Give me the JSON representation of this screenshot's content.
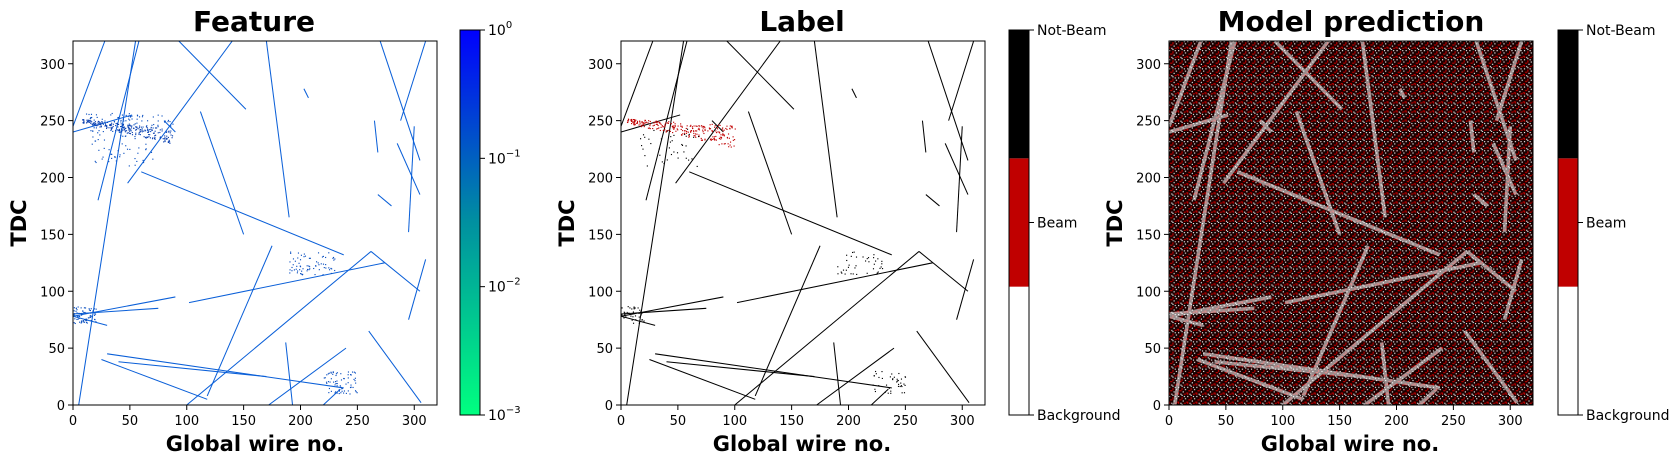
{
  "chart_data": [
    {
      "type": "heatmap",
      "title": "Feature",
      "xlabel": "Global wire no.",
      "ylabel": "TDC",
      "xlim": [
        0,
        320
      ],
      "ylim": [
        0,
        320
      ],
      "x_ticks": [
        "0",
        "50",
        "100",
        "150",
        "200",
        "250",
        "300"
      ],
      "y_ticks": [
        "0",
        "50",
        "100",
        "150",
        "200",
        "250",
        "300"
      ],
      "colorbar": {
        "scale": "log",
        "range": [
          0.001,
          1
        ],
        "tick_labels": [
          {
            "base": "10",
            "exp": "0"
          },
          {
            "base": "10",
            "exp": "−1"
          },
          {
            "base": "10",
            "exp": "−2"
          },
          {
            "base": "10",
            "exp": "−3"
          }
        ],
        "colors": [
          "#00ff80",
          "#0000ff"
        ]
      },
      "track_color": "#0a5fd8",
      "cluster_color": "#0a4fc0",
      "tracks": [
        [
          0,
          245,
          28,
          320
        ],
        [
          5,
          0,
          55,
          320
        ],
        [
          22,
          180,
          58,
          320
        ],
        [
          48,
          195,
          140,
          320
        ],
        [
          93,
          320,
          152,
          260
        ],
        [
          170,
          320,
          190,
          165
        ],
        [
          112,
          258,
          150,
          150
        ],
        [
          60,
          205,
          238,
          132
        ],
        [
          175,
          140,
          118,
          8
        ],
        [
          0,
          80,
          75,
          85
        ],
        [
          0,
          78,
          90,
          95
        ],
        [
          25,
          40,
          118,
          5
        ],
        [
          100,
          0,
          262,
          135
        ],
        [
          172,
          0,
          240,
          50
        ],
        [
          30,
          45,
          238,
          15
        ],
        [
          40,
          38,
          170,
          25
        ],
        [
          102,
          90,
          274,
          125
        ],
        [
          270,
          320,
          305,
          215
        ],
        [
          295,
          152,
          300,
          245
        ],
        [
          295,
          75,
          310,
          128
        ],
        [
          310,
          320,
          288,
          250
        ],
        [
          285,
          230,
          305,
          185
        ],
        [
          0,
          78,
          30,
          70
        ],
        [
          262,
          135,
          305,
          100
        ],
        [
          268,
          185,
          280,
          175
        ],
        [
          0,
          240,
          52,
          255
        ],
        [
          187,
          55,
          193,
          0
        ],
        [
          260,
          65,
          306,
          2
        ],
        [
          220,
          0,
          235,
          14
        ],
        [
          265,
          250,
          268,
          222
        ],
        [
          203,
          278,
          207,
          270
        ],
        [
          80,
          250,
          90,
          240
        ]
      ],
      "clusters": [
        {
          "x": 10,
          "y": 245,
          "dx": 80,
          "dy": 12
        },
        {
          "x": 15,
          "y": 210,
          "dx": 55,
          "dy": 35
        },
        {
          "x": 190,
          "y": 115,
          "dx": 40,
          "dy": 20
        },
        {
          "x": 0,
          "y": 72,
          "dx": 20,
          "dy": 15
        },
        {
          "x": 220,
          "y": 10,
          "dx": 30,
          "dy": 20
        }
      ]
    },
    {
      "type": "heatmap",
      "title": "Label",
      "xlabel": "Global wire no.",
      "ylabel": "TDC",
      "xlim": [
        0,
        320
      ],
      "ylim": [
        0,
        320
      ],
      "x_ticks": [
        "0",
        "50",
        "100",
        "150",
        "200",
        "250",
        "300"
      ],
      "y_ticks": [
        "0",
        "50",
        "100",
        "150",
        "200",
        "250",
        "300"
      ],
      "colorbar": {
        "scale": "categorical",
        "categories": [
          "Background",
          "Beam",
          "Not-Beam"
        ],
        "colors": [
          "#ffffff",
          "#c00000",
          "#000000"
        ]
      },
      "track_color": "#000000",
      "beam_color": "#c00000",
      "beam_region": {
        "x": 5,
        "y": 228,
        "dx": 95,
        "dy": 30
      }
    },
    {
      "type": "heatmap",
      "title": "Model prediction",
      "xlabel": "Global wire no.",
      "ylabel": "TDC",
      "xlim": [
        0,
        320
      ],
      "ylim": [
        0,
        320
      ],
      "x_ticks": [
        "0",
        "50",
        "100",
        "150",
        "200",
        "250",
        "300"
      ],
      "y_ticks": [
        "0",
        "50",
        "100",
        "150",
        "200",
        "250",
        "300"
      ],
      "colorbar": {
        "scale": "categorical",
        "categories": [
          "Background",
          "Beam",
          "Not-Beam"
        ],
        "colors": [
          "#ffffff",
          "#c00000",
          "#000000"
        ]
      },
      "noise_colors": [
        "#000000",
        "#c00000",
        "#ffffff"
      ]
    }
  ]
}
